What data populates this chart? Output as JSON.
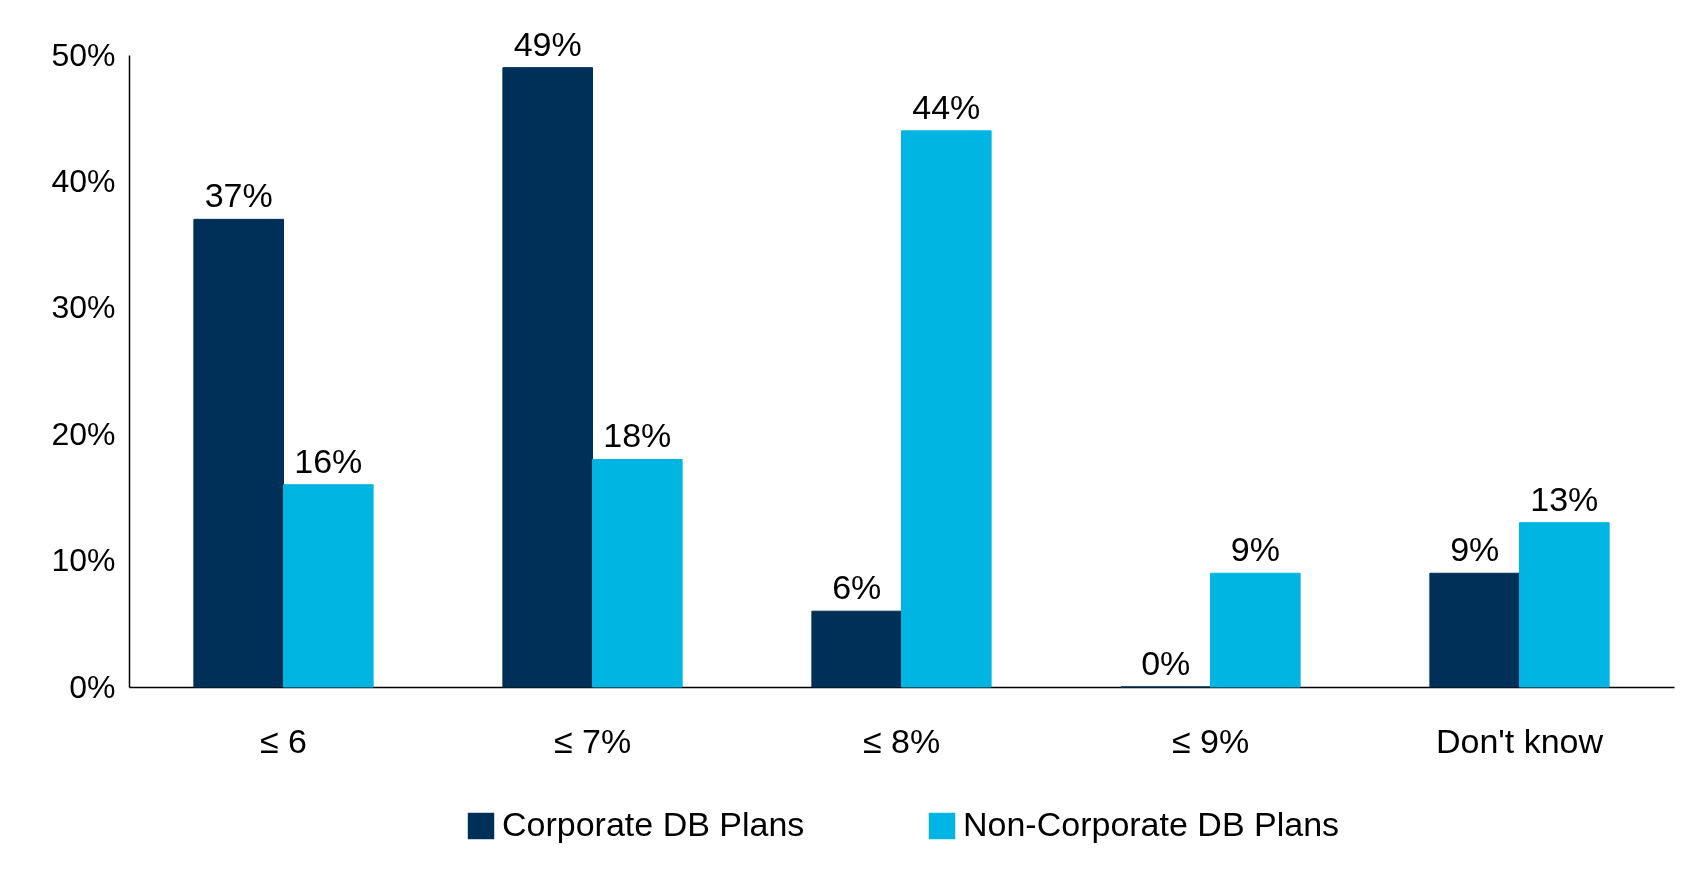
{
  "chart_data": {
    "type": "bar",
    "categories": [
      "≤ 6",
      "≤ 7%",
      "≤ 8%",
      "≤ 9%",
      "Don't know"
    ],
    "series": [
      {
        "name": "Corporate DB Plans",
        "color": "#003057",
        "values": [
          37,
          49,
          6,
          0,
          9
        ],
        "value_labels": [
          "37%",
          "49%",
          "6%",
          "0%",
          "9%"
        ]
      },
      {
        "name": "Non-Corporate DB Plans",
        "color": "#00b5e2",
        "values": [
          16,
          18,
          44,
          9,
          13
        ],
        "value_labels": [
          "16%",
          "18%",
          "44%",
          "9%",
          "13%"
        ]
      }
    ],
    "ylim": [
      0,
      50
    ],
    "yticks": [
      {
        "value": 0,
        "label": "0%"
      },
      {
        "value": 10,
        "label": "10%"
      },
      {
        "value": 20,
        "label": "20%"
      },
      {
        "value": 30,
        "label": "30%"
      },
      {
        "value": 40,
        "label": "40%"
      },
      {
        "value": 50,
        "label": "50%"
      }
    ],
    "legend": "bottom"
  }
}
